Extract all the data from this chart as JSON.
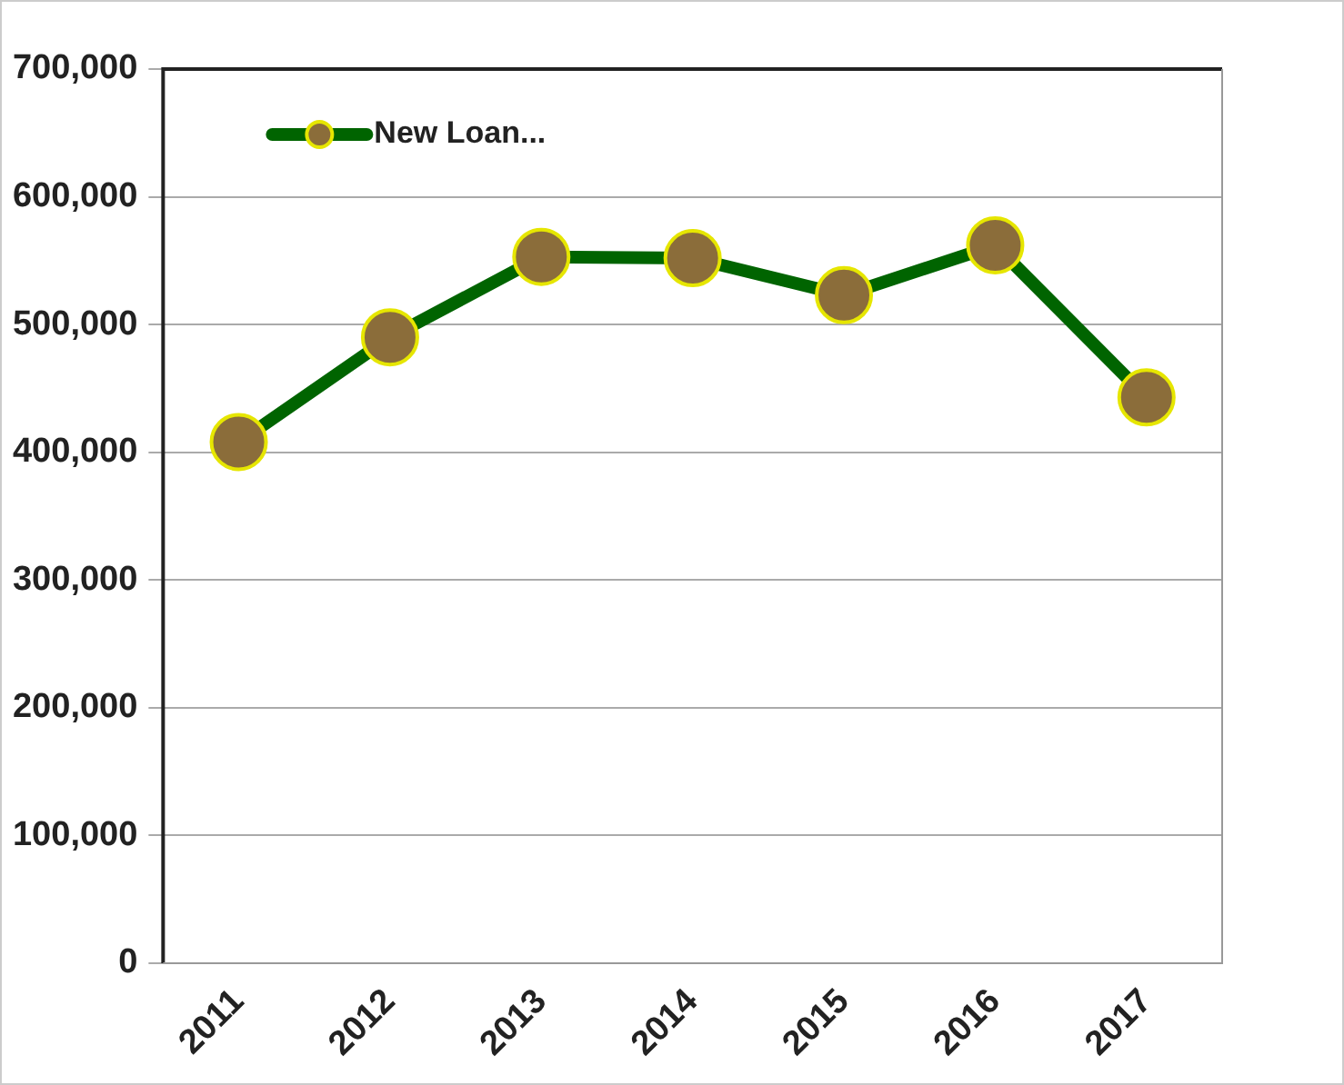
{
  "chart_data": {
    "type": "line",
    "categories": [
      "2011",
      "2012",
      "2013",
      "2014",
      "2015",
      "2016",
      "2017"
    ],
    "series": [
      {
        "name": "New Loan...",
        "color": "#006400",
        "values": [
          408000,
          490000,
          553000,
          552000,
          523000,
          562000,
          443000
        ]
      }
    ],
    "ylim": [
      0,
      700000
    ],
    "yticks": [
      {
        "value": 0,
        "label": "0"
      },
      {
        "value": 100000,
        "label": "100,000"
      },
      {
        "value": 200000,
        "label": "200,000"
      },
      {
        "value": 300000,
        "label": "300,000"
      },
      {
        "value": 400000,
        "label": "400,000"
      },
      {
        "value": 500000,
        "label": "500,000"
      },
      {
        "value": 600000,
        "label": "600,000"
      },
      {
        "value": 700000,
        "label": "700,000"
      }
    ],
    "grid": "y",
    "legend": "top left",
    "marker": "circle",
    "line_style": "solid"
  }
}
